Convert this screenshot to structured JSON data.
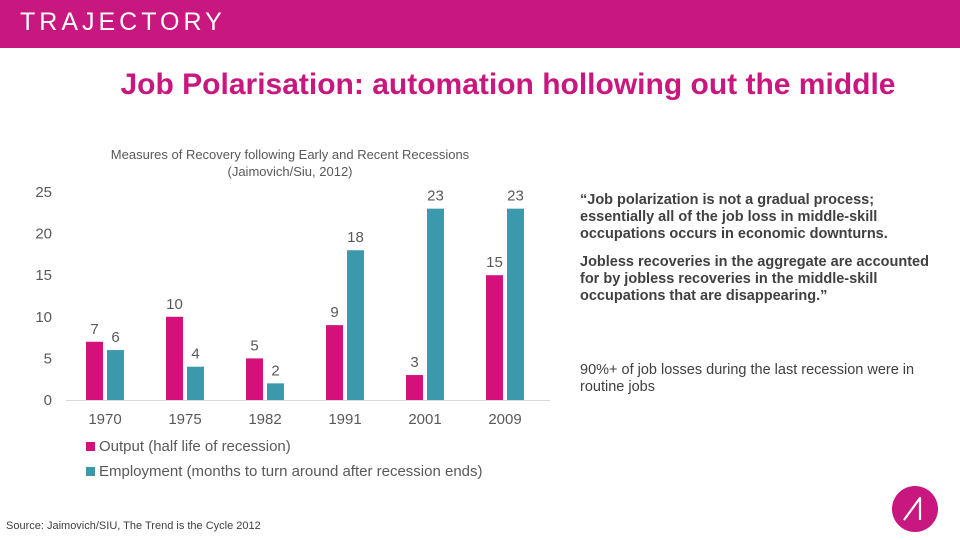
{
  "header": {
    "brand": "TRAJECTORY"
  },
  "page_title": "Job Polarisation: automation hollowing out the middle",
  "chart_data": {
    "type": "bar",
    "title_line1": "Measures of Recovery following Early and Recent Recessions",
    "title_line2": "(Jaimovich/Siu, 2012)",
    "categories": [
      "1970",
      "1975",
      "1982",
      "1991",
      "2001",
      "2009"
    ],
    "series": [
      {
        "name": "Output (half life of recession)",
        "values": [
          7,
          10,
          5,
          9,
          3,
          15
        ],
        "color": "#d4117a"
      },
      {
        "name": "Employment (months to turn around after recession ends)",
        "values": [
          6,
          4,
          2,
          18,
          23,
          23
        ],
        "color": "#3a9aab"
      }
    ],
    "yticks": [
      "0",
      "5",
      "10",
      "15",
      "20",
      "25"
    ],
    "ylim": [
      0,
      25
    ],
    "grid": false
  },
  "quote": {
    "paragraph1": "“Job polarization is not a gradual process; essentially all of the job loss in middle-skill occupations occurs in economic downturns.",
    "paragraph2": "Jobless recoveries in the aggregate are accounted for by jobless recoveries in the middle-skill occupations that are disappearing.”"
  },
  "note": "90%+ of job losses during the last recession were in routine jobs",
  "source": "Source: Jaimovich/SIU, The Trend is the Cycle 2012"
}
